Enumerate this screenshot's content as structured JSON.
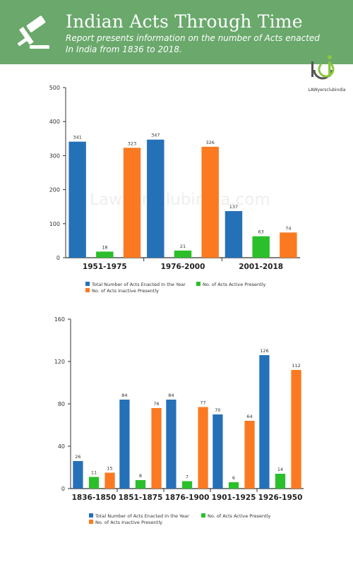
{
  "header": {
    "title": "Indian Acts Through Time",
    "subtitle": "Report presents information on the number  of Acts enacted In India from 1836 to  2018.",
    "icon": "gavel-icon",
    "background": "#6aa86c"
  },
  "logo": {
    "text": "LAWyersclubindia",
    "icon": "lci-logo-icon"
  },
  "watermark": "Lawyersclubindia.com",
  "colors": {
    "total": "#2571b8",
    "active": "#2bbf2b",
    "inactive": "#fb7a21"
  },
  "chart_data": [
    {
      "type": "bar",
      "categories": [
        "1951-1975",
        "1976-2000",
        "2001-2018"
      ],
      "series": [
        {
          "name": "Total Number of Acts Enacted In the Year",
          "values": [
            341,
            347,
            137
          ]
        },
        {
          "name": "No. of Acts Active Presently",
          "values": [
            18,
            21,
            63
          ]
        },
        {
          "name": "No. of Acts Inactive Presently",
          "values": [
            323,
            326,
            74
          ]
        }
      ],
      "ylim": [
        0,
        500
      ],
      "yticks": [
        0,
        100,
        200,
        300,
        400,
        500
      ],
      "legend": "bottom"
    },
    {
      "type": "bar",
      "categories": [
        "1836-1850",
        "1851-1875",
        "1876-1900",
        "1901-1925",
        "1926-1950"
      ],
      "series": [
        {
          "name": "Total Number of Acts Enacted In the Year",
          "values": [
            26,
            84,
            84,
            70,
            126
          ]
        },
        {
          "name": "No. of Acts Active Presently",
          "values": [
            11,
            8,
            7,
            6,
            14
          ]
        },
        {
          "name": "No. of Acts Inactive Presently",
          "values": [
            15,
            76,
            77,
            64,
            112
          ]
        }
      ],
      "ylim": [
        0,
        160
      ],
      "yticks": [
        0,
        40,
        80,
        120,
        160
      ],
      "legend": "bottom"
    }
  ]
}
